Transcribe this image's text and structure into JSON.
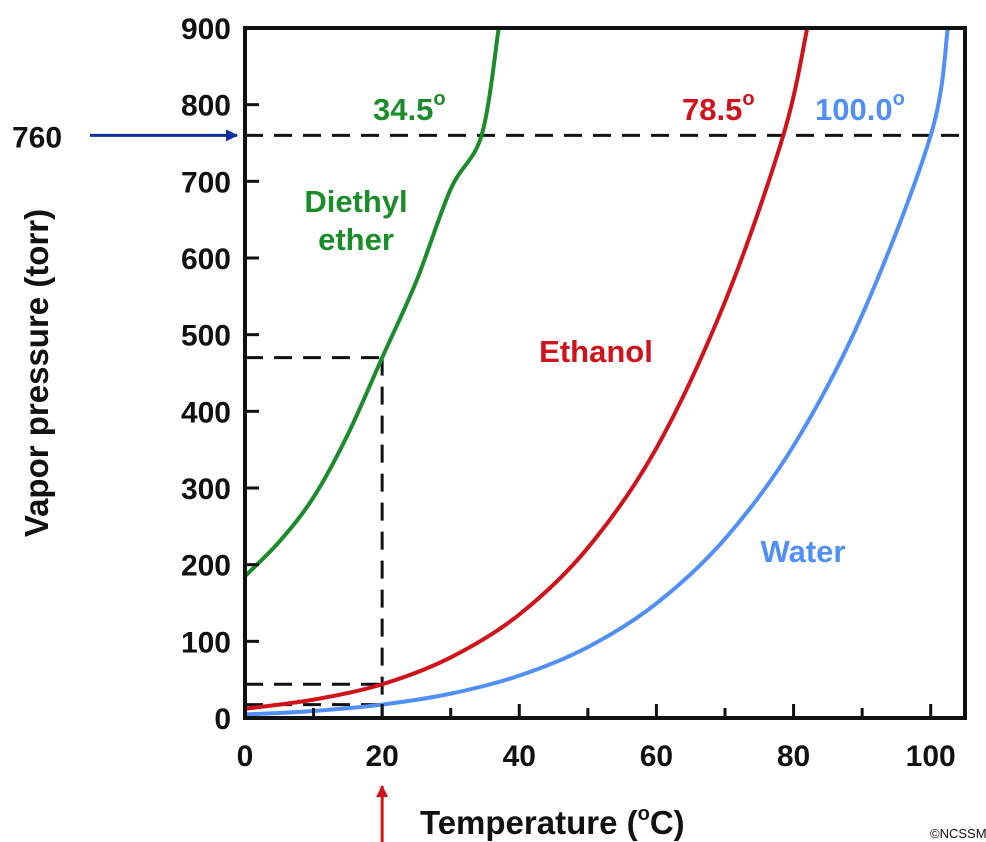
{
  "chart_data": {
    "type": "line",
    "title": "",
    "xlabel": "Temperature (°C)",
    "xlabel_main": "Temperature (",
    "xlabel_degree": "o",
    "xlabel_unit": "C)",
    "ylabel": "Vapor pressure (torr)",
    "xlim": [
      0,
      105
    ],
    "ylim": [
      0,
      900
    ],
    "x_ticks": [
      0,
      20,
      40,
      60,
      80,
      100
    ],
    "x_minor_ticks": [
      10,
      30,
      50,
      70,
      90
    ],
    "y_ticks": [
      0,
      100,
      200,
      300,
      400,
      500,
      600,
      700,
      800,
      900
    ],
    "grid": false,
    "series": [
      {
        "name": "Diethyl ether",
        "label_lines": [
          "Diethyl",
          "ether"
        ],
        "color": "#1a8c2a",
        "boiling_point_label": "34.5",
        "x": [
          0,
          5,
          10,
          15,
          20,
          25,
          30,
          34.5,
          37
        ],
        "y": [
          185,
          230,
          288,
          370,
          470,
          570,
          690,
          760,
          900
        ]
      },
      {
        "name": "Ethanol",
        "label_lines": [
          "Ethanol"
        ],
        "color": "#d0121b",
        "boiling_point_label": "78.5",
        "x": [
          0,
          10,
          20,
          30,
          40,
          50,
          60,
          70,
          78.5,
          82
        ],
        "y": [
          12,
          24,
          44,
          79,
          135,
          222,
          352,
          543,
          760,
          900
        ]
      },
      {
        "name": "Water",
        "label_lines": [
          "Water"
        ],
        "color": "#4f8ff7",
        "boiling_point_label": "100.0",
        "x": [
          0,
          10,
          20,
          30,
          40,
          50,
          60,
          70,
          80,
          90,
          100,
          102.5
        ],
        "y": [
          4.6,
          9.2,
          17.5,
          31.8,
          55.3,
          92.5,
          149.4,
          233.7,
          355.1,
          525.8,
          760,
          900
        ]
      }
    ],
    "reference_pressure": {
      "label": "760",
      "value": 760,
      "color": "#0d2fa0"
    },
    "reference_temperature": {
      "value": 20,
      "color": "#d0121b"
    },
    "readouts": [
      470,
      44,
      17.5
    ],
    "degree_symbol": "o",
    "credit": "©NCSSM"
  }
}
